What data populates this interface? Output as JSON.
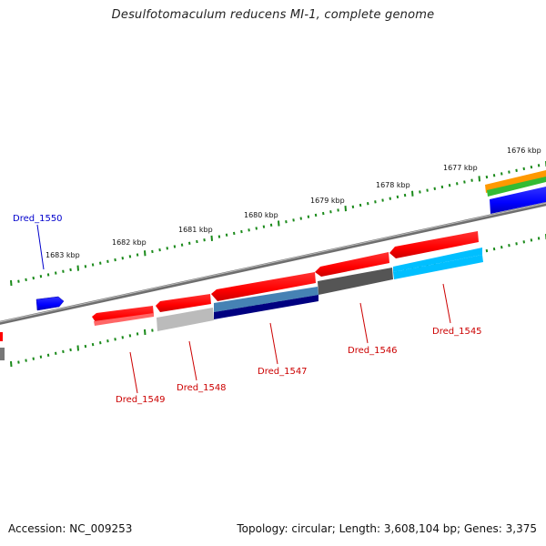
{
  "title": "Desulfotomaculum reducens MI-1, complete genome",
  "footer": {
    "accession": "Accession: NC_009253",
    "stats": "Topology: circular; Length: 3,608,104 bp; Genes: 3,375"
  },
  "scale_labels": [
    {
      "text": "1676 kbp"
    },
    {
      "text": "1677 kbp"
    },
    {
      "text": "1678 kbp"
    },
    {
      "text": "1679 kbp"
    },
    {
      "text": "1680 kbp"
    },
    {
      "text": "1681 kbp"
    },
    {
      "text": "1682 kbp"
    },
    {
      "text": "1683 kbp"
    }
  ],
  "genes": [
    {
      "label": "Dred_1545",
      "color": "#cc0000"
    },
    {
      "label": "Dred_1546",
      "color": "#cc0000"
    },
    {
      "label": "Dred_1547",
      "color": "#cc0000"
    },
    {
      "label": "Dred_1548",
      "color": "#cc0000"
    },
    {
      "label": "Dred_1549",
      "color": "#cc0000"
    },
    {
      "label": "Dred_1550",
      "color": "#0000cc"
    }
  ],
  "colors": {
    "forward_strand_gene": "#0000ff",
    "reverse_strand_gene": "#ff0000",
    "backbone": "#777777",
    "scale_ticks": "#1a8a1a",
    "cog_orange": "#ff9900",
    "cog_green": "#33cc33",
    "cog_light_blue": "#00bfff",
    "cog_dark_blue": "#000080",
    "cog_steel_blue": "#4682b4",
    "cog_dark_gray": "#555555",
    "cog_light_gray": "#bbbbbb"
  }
}
